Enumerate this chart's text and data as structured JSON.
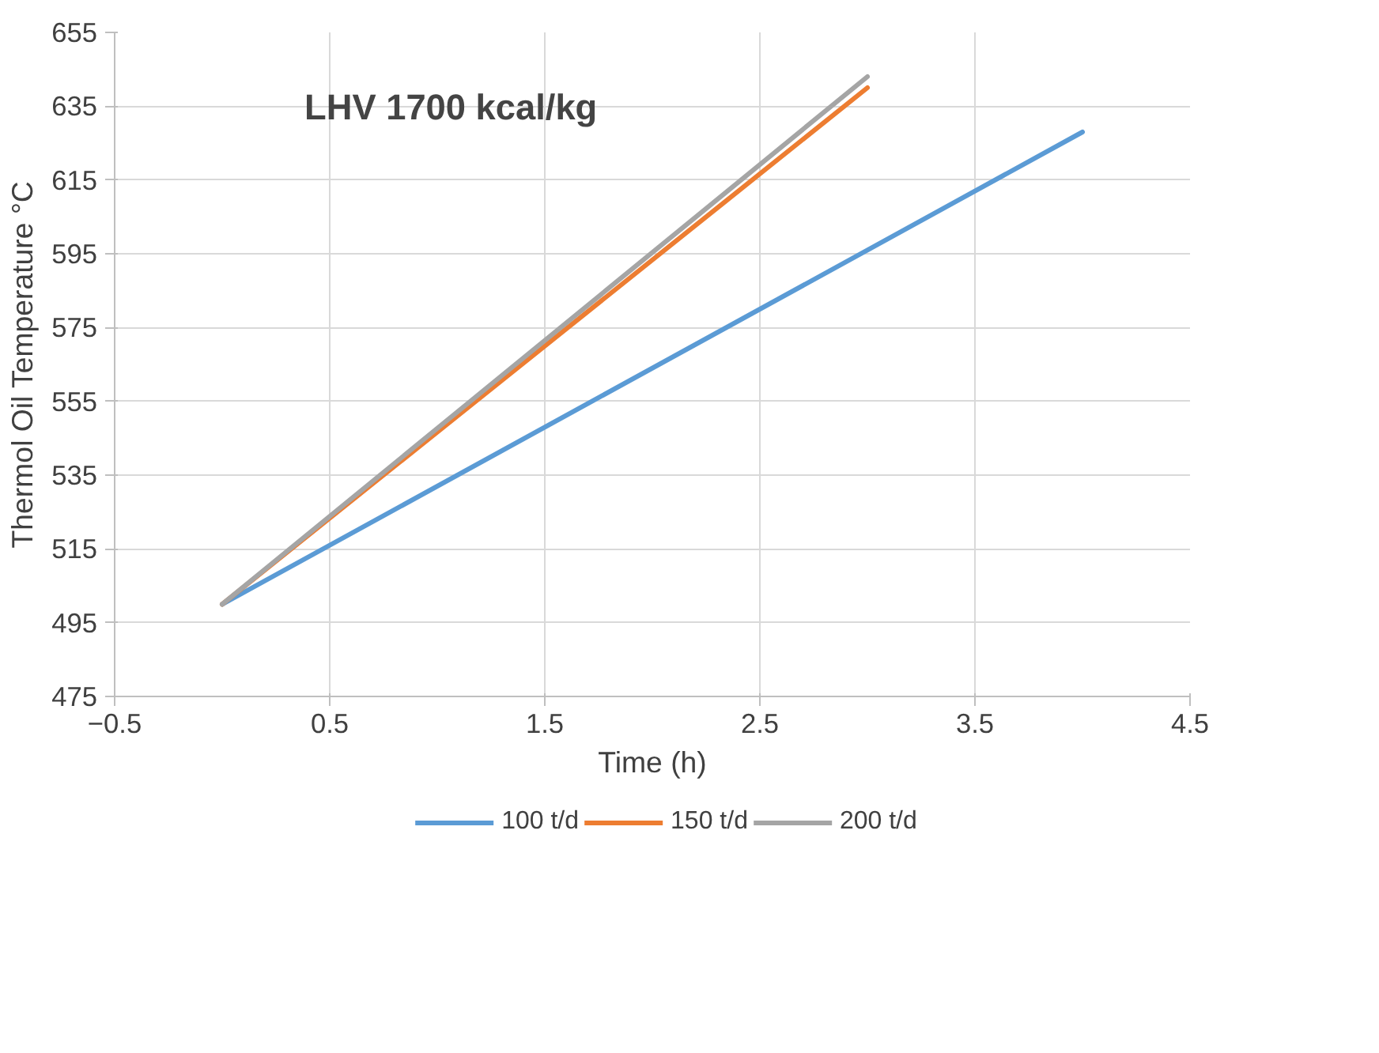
{
  "chart_data": {
    "type": "line",
    "xlabel": "Time (h)",
    "ylabel": "Thermol Oil Temperature °C",
    "annotations": [
      "LHV 1700 kcal/kg"
    ],
    "xlim": [
      -0.5,
      4.5
    ],
    "xticks": [
      -0.5,
      0.5,
      1.5,
      2.5,
      3.5,
      4.5
    ],
    "ylim": [
      475,
      655
    ],
    "yticks": [
      475,
      495,
      515,
      535,
      555,
      575,
      595,
      615,
      635,
      655
    ],
    "grid": true,
    "legend": "bottom",
    "marker": "none",
    "line_style": "solid",
    "series": [
      {
        "name": "100 t/d",
        "color": "#5b9bd5",
        "x": [
          0,
          4
        ],
        "values": [
          500,
          628
        ]
      },
      {
        "name": "150 t/d",
        "color": "#ed7d31",
        "x": [
          0,
          3
        ],
        "values": [
          500,
          640
        ]
      },
      {
        "name": "200 t/d",
        "color": "#a5a5a5",
        "x": [
          0,
          3
        ],
        "values": [
          500,
          643
        ]
      }
    ]
  }
}
